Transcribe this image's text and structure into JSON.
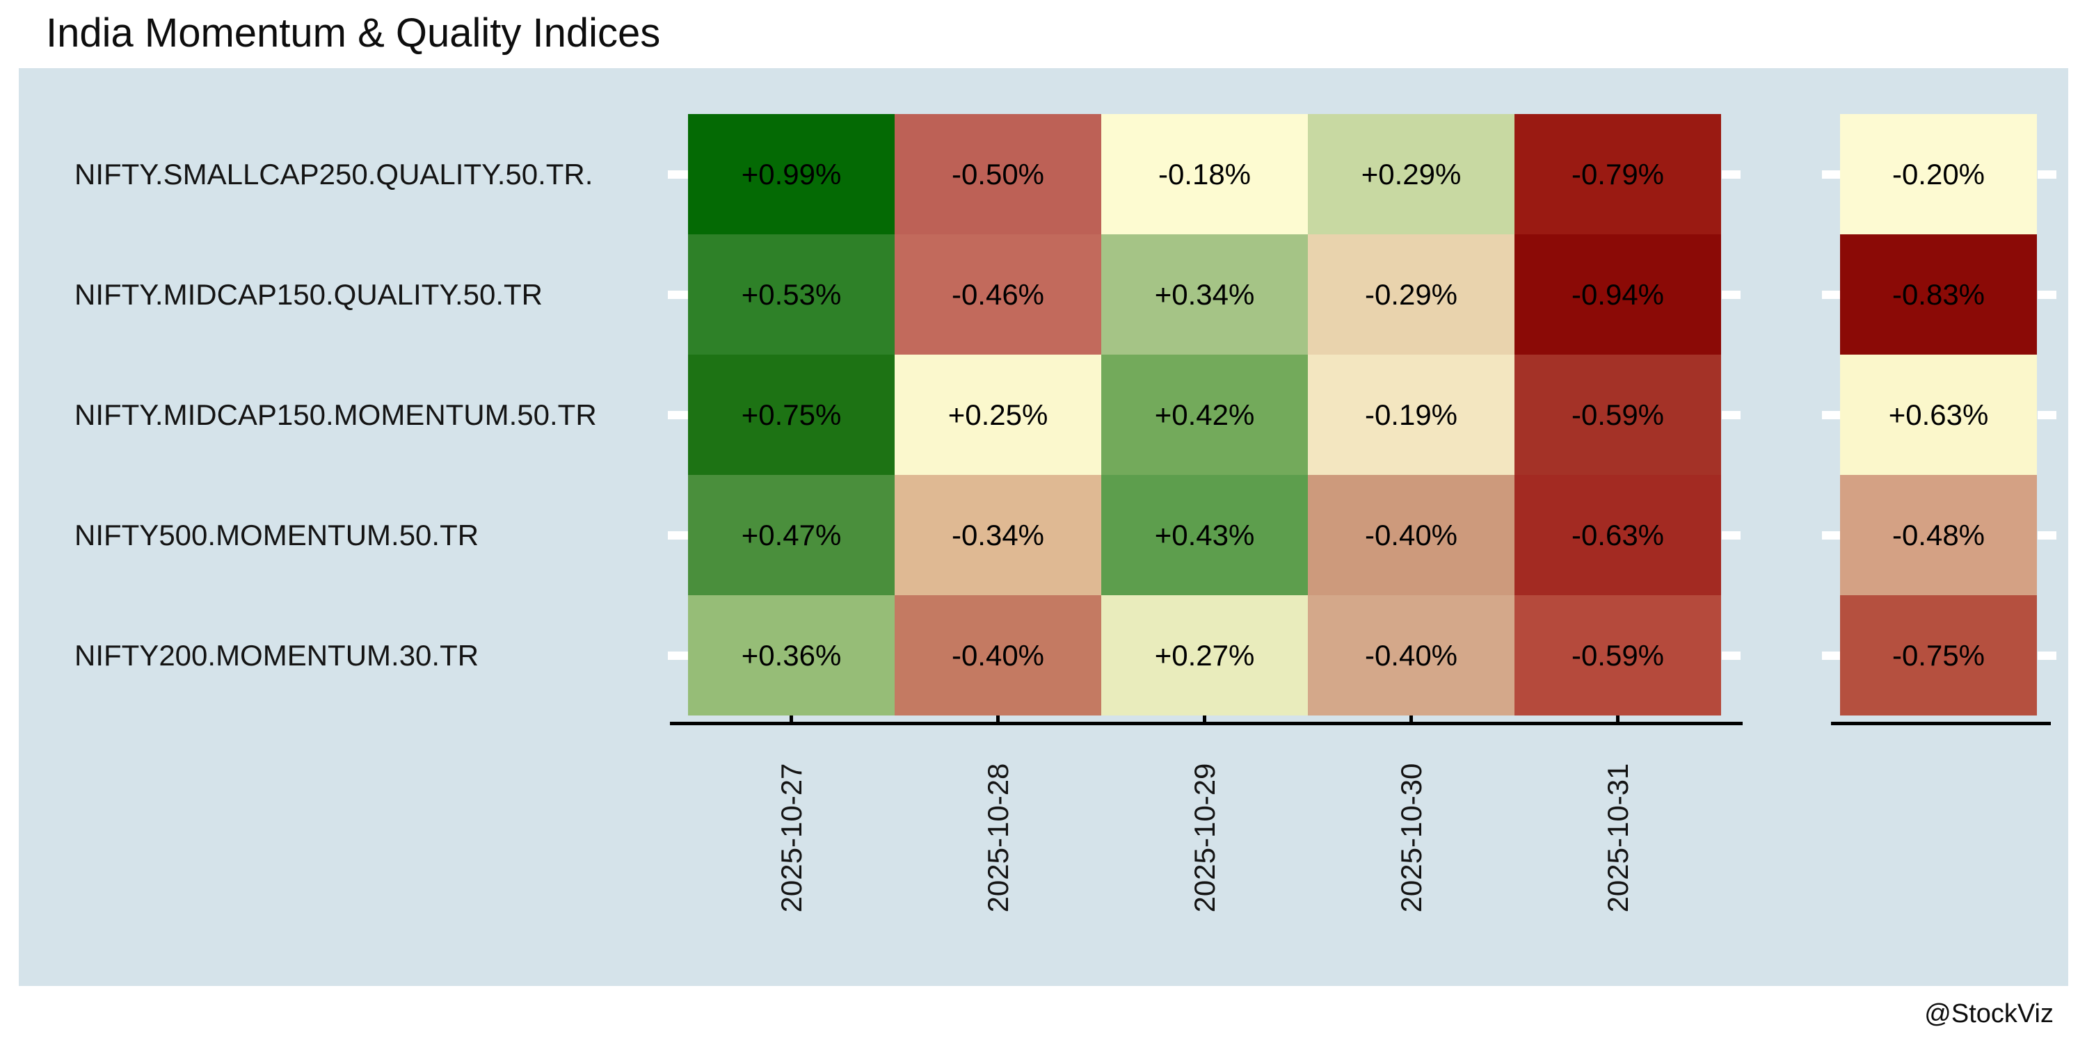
{
  "title": "India Momentum & Quality Indices",
  "watermark": "@StockViz",
  "colors": {
    "page_bg": "#ffffff",
    "panel_bg": "#d5e3ea",
    "axis_line": "#000000",
    "y_tick": "#ffffff",
    "title_text": "#0d0d0d",
    "label_text": "#141414",
    "cell_text": "#000000"
  },
  "chart_data": {
    "type": "heatmap",
    "title": "India Momentum & Quality Indices",
    "colormap": "diverging darkred / lightyellow / darkgreen",
    "x_tick_rotation": 90,
    "grid": false,
    "rows": [
      "NIFTY.SMALLCAP250.QUALITY.50.TR.",
      "NIFTY.MIDCAP150.QUALITY.50.TR",
      "NIFTY.MIDCAP150.MOMENTUM.50.TR",
      "NIFTY500.MOMENTUM.50.TR",
      "NIFTY200.MOMENTUM.30.TR"
    ],
    "columns": [
      "2025-10-27",
      "2025-10-28",
      "2025-10-29",
      "2025-10-30",
      "2025-10-31"
    ],
    "values_pct": [
      [
        0.99,
        -0.5,
        -0.18,
        0.29,
        -0.79
      ],
      [
        0.53,
        -0.46,
        0.34,
        -0.29,
        -0.94
      ],
      [
        0.75,
        0.25,
        0.42,
        -0.19,
        -0.59
      ],
      [
        0.47,
        -0.34,
        0.43,
        -0.4,
        -0.63
      ],
      [
        0.36,
        -0.4,
        0.27,
        -0.4,
        -0.59
      ]
    ],
    "cell_labels": [
      [
        "+0.99%",
        "-0.50%",
        "-0.18%",
        "+0.29%",
        "-0.79%"
      ],
      [
        "+0.53%",
        "-0.46%",
        "+0.34%",
        "-0.29%",
        "-0.94%"
      ],
      [
        "+0.75%",
        "+0.25%",
        "+0.42%",
        "-0.19%",
        "-0.59%"
      ],
      [
        "+0.47%",
        "-0.34%",
        "+0.43%",
        "-0.40%",
        "-0.63%"
      ],
      [
        "+0.36%",
        "-0.40%",
        "+0.27%",
        "-0.40%",
        "-0.59%"
      ]
    ],
    "cell_colors": [
      [
        "#046a04",
        "#bd6156",
        "#fdfbd1",
        "#c8d9a2",
        "#9a1a12"
      ],
      [
        "#2e8128",
        "#c26a5c",
        "#a5c486",
        "#e9d3ad",
        "#8b0a06"
      ],
      [
        "#1d7314",
        "#fbf8cd",
        "#73aa5b",
        "#f3e6c0",
        "#a43227"
      ],
      [
        "#4a8f3c",
        "#dfb993",
        "#5d9e4d",
        "#cd9a7c",
        "#a32a22"
      ],
      [
        "#96bd77",
        "#c47a62",
        "#e9ecbc",
        "#d4a88a",
        "#b54a3c"
      ]
    ],
    "total_column": {
      "values_pct": [
        -0.2,
        -0.83,
        0.63,
        -0.48,
        -0.75
      ],
      "labels": [
        "-0.20%",
        "-0.83%",
        "+0.63%",
        "-0.48%",
        "-0.75%"
      ],
      "colors": [
        "#fdfad2",
        "#8b0a06",
        "#fbf7cb",
        "#d4a184",
        "#b5503f"
      ]
    }
  }
}
